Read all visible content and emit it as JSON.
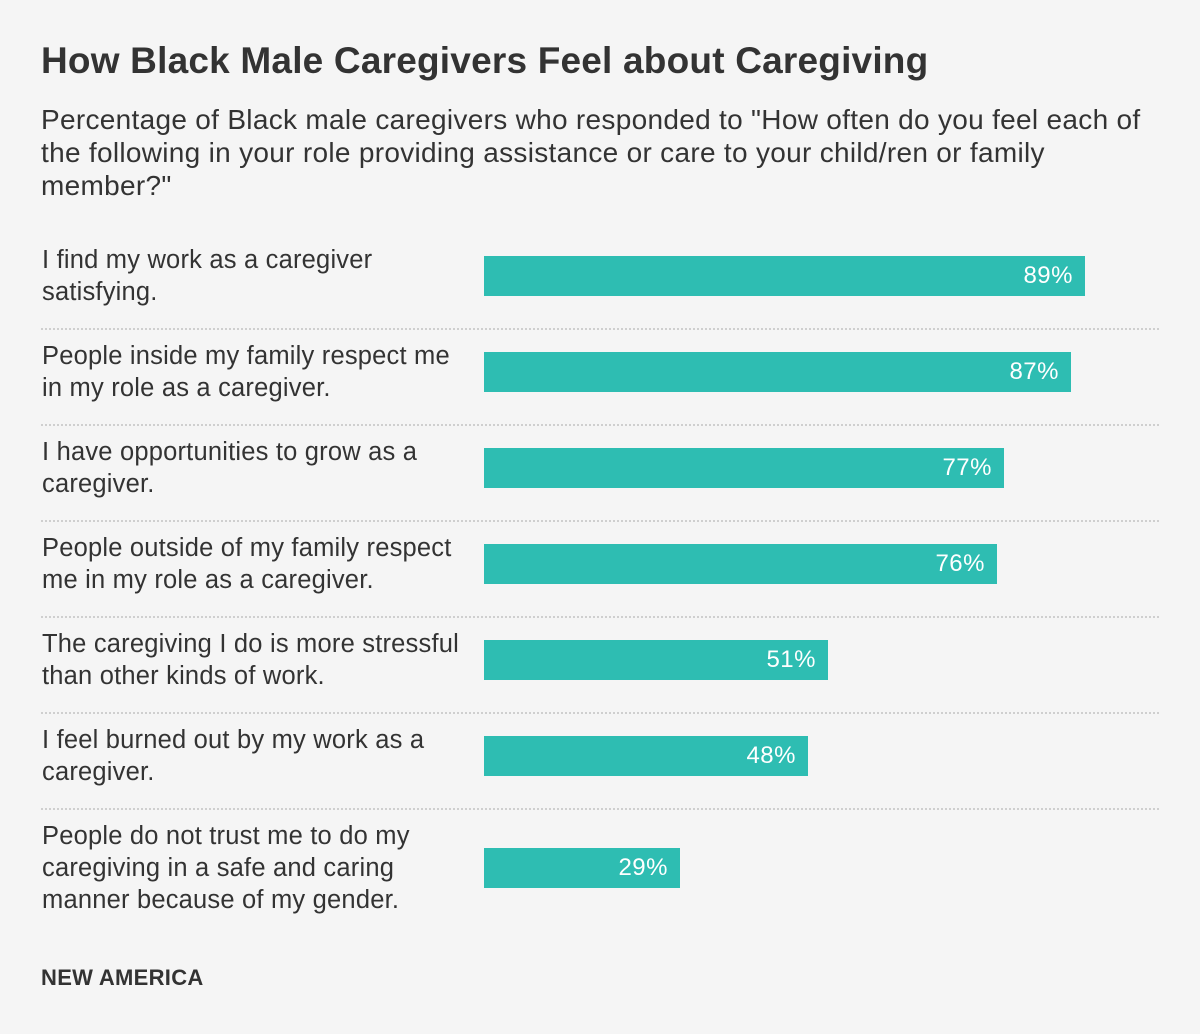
{
  "chart_data": {
    "type": "bar",
    "orientation": "horizontal",
    "title": "How Black Male Caregivers Feel about Caregiving",
    "subtitle": "Percentage of Black male caregivers who responded to \"How often do you feel each of the following in your role providing assistance or care to your child/ren or family member?\"",
    "categories": [
      "I find my work as a caregiver satisfying.",
      "People inside my family respect me in my role as a caregiver.",
      "I have opportunities to grow as a caregiver.",
      "People outside of my family respect me in my role as a caregiver.",
      "The caregiving I do is more stressful than other kinds of work.",
      "I feel burned out by my work as a caregiver.",
      "People do not trust me to do my caregiving in a safe and caring manner because of my gender."
    ],
    "values": [
      89,
      87,
      77,
      76,
      51,
      48,
      29
    ],
    "value_labels": [
      "89%",
      "87%",
      "77%",
      "76%",
      "51%",
      "48%",
      "29%"
    ],
    "xlim": [
      0,
      100
    ],
    "grid": false,
    "bar_color": "#2ebdb2"
  },
  "source": "NEW AMERICA"
}
